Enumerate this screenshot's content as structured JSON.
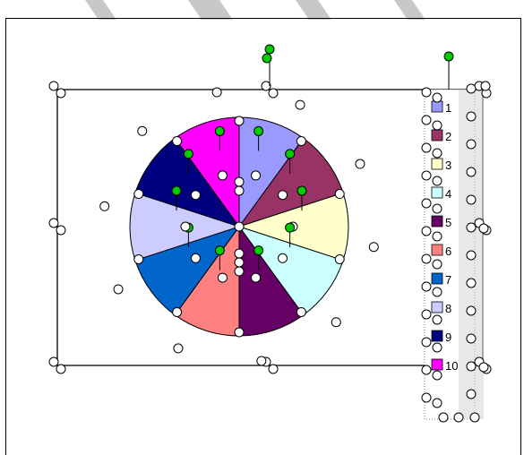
{
  "watermark": {
    "color": "#c8c8c8"
  },
  "chart_data": {
    "type": "pie",
    "categories": [
      "1",
      "2",
      "3",
      "4",
      "5",
      "6",
      "7",
      "8",
      "9",
      "10"
    ],
    "values": [
      10,
      10,
      10,
      10,
      10,
      10,
      10,
      10,
      10,
      10
    ],
    "colors": [
      "#9999ff",
      "#993366",
      "#ffffcc",
      "#ccffff",
      "#660066",
      "#ff8080",
      "#0066cc",
      "#ccccff",
      "#000080",
      "#ff00ff"
    ],
    "start_angle_deg": 0,
    "legend": {
      "placement": "right",
      "labels": [
        "1",
        "2",
        "3",
        "4",
        "5",
        "6",
        "7",
        "8",
        "9",
        "10"
      ]
    },
    "selection_handles": true
  },
  "handles": {
    "fill": "#ffffff",
    "adjust_fill": "#00cc00"
  }
}
